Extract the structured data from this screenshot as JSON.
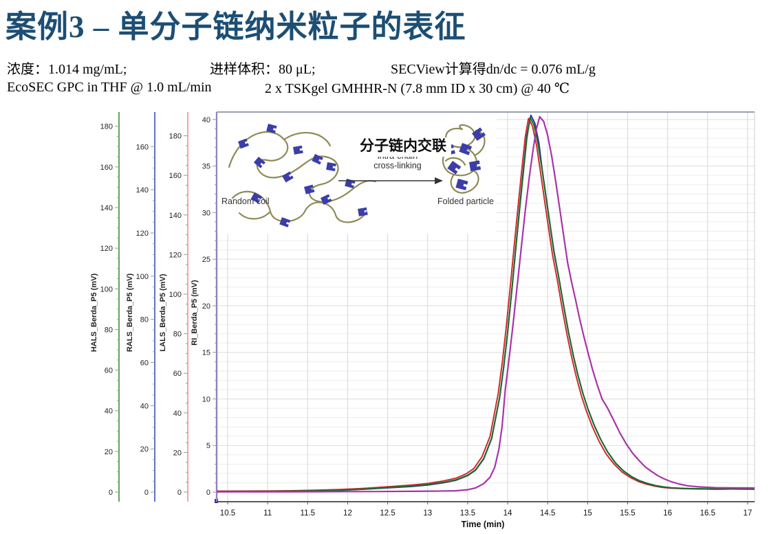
{
  "header": {
    "title": "案例3 – 单分子链纳米粒子的表征",
    "title_color": "#1d4e74",
    "info_line": {
      "concentration": "浓度：1.014 mg/mL;",
      "injection": "进样体积：80 μL;",
      "secview": "SECView计算得dn/dc = 0.076 mL/g"
    },
    "method_line": {
      "system": "EcoSEC GPC in THF @ 1.0 mL/min",
      "column": "2 x TSKgel GMHHR-N (7.8 mm ID x 30 cm) @ 40 ℃"
    }
  },
  "inset": {
    "random_coil_label": "Random coil",
    "folded_particle_label": "Folded particle",
    "cn_label": "分子链内交联",
    "en_label_line1": "intra-chain",
    "en_label_line2": "cross-linking",
    "chain_color": "#8d8a55",
    "block_color": "#3b3ea8",
    "arrow_color": "#333333"
  },
  "chart_data": {
    "type": "line",
    "xlabel": "Time (min)",
    "x_ticks": [
      10.5,
      11,
      11.5,
      12,
      12.5,
      13,
      13.5,
      14,
      14.5,
      15,
      15.5,
      16,
      16.5,
      17
    ],
    "x_range": [
      10.36,
      17.09
    ],
    "grid": {
      "minor_color": "#ededed",
      "major_color": "#dcdcdc",
      "vert_color": "#d7d7d7",
      "top_border": "#77808e",
      "axis_line": "#4f5b69"
    },
    "y_axes": [
      {
        "label": "HALS_Berda_P5 (mV)",
        "color": "#3a8c3a",
        "ticks": [
          0,
          20,
          40,
          60,
          80,
          100,
          120,
          140,
          160,
          180
        ],
        "minor_step": 5,
        "range": [
          0,
          187
        ]
      },
      {
        "label": "RALS_Berda_P5 (mV)",
        "color": "#3a4ac0",
        "ticks": [
          0,
          20,
          40,
          60,
          80,
          100,
          120,
          140,
          160
        ],
        "minor_step": 5,
        "range": [
          0,
          176
        ]
      },
      {
        "label": "LALS_Berda_P5 (mV)",
        "color": "#ef8f8f",
        "ticks": [
          0,
          20,
          40,
          60,
          80,
          100,
          120,
          140,
          160,
          180
        ],
        "minor_step": 5,
        "range": [
          0,
          192
        ]
      },
      {
        "label": "RI_Berda_P5 (mV)",
        "color": "#9181bd",
        "ticks": [
          0,
          5,
          10,
          15,
          20,
          25,
          30,
          35,
          40
        ],
        "minor_step": 1,
        "range": [
          0,
          40.8
        ]
      }
    ],
    "series": [
      {
        "name": "LALS_Berda_P5",
        "color": "#cf2b2b",
        "width": 2,
        "points": [
          [
            10.36,
            0.1
          ],
          [
            10.7,
            0.11
          ],
          [
            11,
            0.12
          ],
          [
            11.3,
            0.15
          ],
          [
            11.6,
            0.2
          ],
          [
            11.9,
            0.27
          ],
          [
            12.2,
            0.4
          ],
          [
            12.5,
            0.57
          ],
          [
            12.8,
            0.75
          ],
          [
            13,
            0.92
          ],
          [
            13.2,
            1.2
          ],
          [
            13.35,
            1.48
          ],
          [
            13.48,
            1.95
          ],
          [
            13.58,
            2.55
          ],
          [
            13.68,
            3.8
          ],
          [
            13.78,
            6.0
          ],
          [
            13.88,
            10.5
          ],
          [
            13.93,
            13.7
          ],
          [
            13.98,
            17.5
          ],
          [
            14.03,
            21.8
          ],
          [
            14.08,
            26.3
          ],
          [
            14.13,
            30.7
          ],
          [
            14.18,
            34.9
          ],
          [
            14.22,
            38.1
          ],
          [
            14.26,
            40.1
          ],
          [
            14.31,
            39.3
          ],
          [
            14.36,
            37.3
          ],
          [
            14.41,
            34.4
          ],
          [
            14.46,
            31.4
          ],
          [
            14.51,
            28.4
          ],
          [
            14.56,
            25.5
          ],
          [
            14.62,
            22.8
          ],
          [
            14.68,
            19.8
          ],
          [
            14.74,
            17.0
          ],
          [
            14.8,
            14.5
          ],
          [
            14.86,
            12.3
          ],
          [
            14.92,
            10.4
          ],
          [
            14.98,
            8.8
          ],
          [
            15.06,
            7.0
          ],
          [
            15.14,
            5.5
          ],
          [
            15.23,
            4.1
          ],
          [
            15.33,
            3.0
          ],
          [
            15.43,
            2.15
          ],
          [
            15.53,
            1.58
          ],
          [
            15.63,
            1.15
          ],
          [
            15.73,
            0.86
          ],
          [
            15.83,
            0.65
          ],
          [
            15.93,
            0.51
          ],
          [
            16.03,
            0.43
          ],
          [
            16.2,
            0.37
          ],
          [
            16.4,
            0.34
          ],
          [
            16.6,
            0.32
          ],
          [
            16.8,
            0.33
          ],
          [
            17.09,
            0.31
          ]
        ]
      },
      {
        "name": "RALS_Berda_P5",
        "color": "#2a2f9e",
        "width": 2,
        "points": [
          [
            10.36,
            0.03
          ],
          [
            10.7,
            0.05
          ],
          [
            11,
            0.06
          ],
          [
            11.3,
            0.08
          ],
          [
            11.6,
            0.12
          ],
          [
            11.9,
            0.18
          ],
          [
            12.2,
            0.3
          ],
          [
            12.5,
            0.45
          ],
          [
            12.8,
            0.6
          ],
          [
            13,
            0.76
          ],
          [
            13.2,
            1.0
          ],
          [
            13.35,
            1.26
          ],
          [
            13.5,
            1.76
          ],
          [
            13.6,
            2.36
          ],
          [
            13.7,
            3.55
          ],
          [
            13.8,
            5.75
          ],
          [
            13.9,
            10.15
          ],
          [
            13.95,
            13.35
          ],
          [
            14,
            17.15
          ],
          [
            14.05,
            21.5
          ],
          [
            14.1,
            26.1
          ],
          [
            14.15,
            30.6
          ],
          [
            14.2,
            34.9
          ],
          [
            14.24,
            38.3
          ],
          [
            14.29,
            40.45
          ],
          [
            14.34,
            39.6
          ],
          [
            14.39,
            37.5
          ],
          [
            14.43,
            34.7
          ],
          [
            14.48,
            31.7
          ],
          [
            14.53,
            28.7
          ],
          [
            14.58,
            25.8
          ],
          [
            14.64,
            23.0
          ],
          [
            14.7,
            20.0
          ],
          [
            14.76,
            17.2
          ],
          [
            14.82,
            14.7
          ],
          [
            14.88,
            12.5
          ],
          [
            14.94,
            10.6
          ],
          [
            15,
            9.0
          ],
          [
            15.08,
            7.2
          ],
          [
            15.16,
            5.7
          ],
          [
            15.25,
            4.3
          ],
          [
            15.35,
            3.1
          ],
          [
            15.45,
            2.25
          ],
          [
            15.55,
            1.65
          ],
          [
            15.65,
            1.2
          ],
          [
            15.75,
            0.9
          ],
          [
            15.85,
            0.68
          ],
          [
            15.95,
            0.53
          ],
          [
            16.05,
            0.44
          ],
          [
            16.2,
            0.38
          ],
          [
            16.4,
            0.34
          ],
          [
            16.6,
            0.32
          ],
          [
            16.8,
            0.33
          ],
          [
            17.09,
            0.31
          ]
        ]
      },
      {
        "name": "HALS_Berda_P5",
        "color": "#1b6b2b",
        "width": 2,
        "points": [
          [
            10.36,
            0.05
          ],
          [
            10.7,
            0.07
          ],
          [
            11,
            0.08
          ],
          [
            11.3,
            0.1
          ],
          [
            11.6,
            0.14
          ],
          [
            11.9,
            0.2
          ],
          [
            12.2,
            0.32
          ],
          [
            12.5,
            0.48
          ],
          [
            12.8,
            0.64
          ],
          [
            13,
            0.8
          ],
          [
            13.2,
            1.05
          ],
          [
            13.35,
            1.3
          ],
          [
            13.5,
            1.8
          ],
          [
            13.6,
            2.4
          ],
          [
            13.7,
            3.6
          ],
          [
            13.8,
            5.8
          ],
          [
            13.9,
            10.2
          ],
          [
            13.95,
            13.4
          ],
          [
            14,
            17.2
          ],
          [
            14.05,
            21.5
          ],
          [
            14.1,
            26.0
          ],
          [
            14.15,
            30.4
          ],
          [
            14.2,
            34.6
          ],
          [
            14.24,
            38.0
          ],
          [
            14.28,
            40.2
          ],
          [
            14.33,
            39.4
          ],
          [
            14.38,
            37.4
          ],
          [
            14.43,
            34.6
          ],
          [
            14.48,
            31.6
          ],
          [
            14.53,
            28.6
          ],
          [
            14.58,
            25.7
          ],
          [
            14.64,
            23.0
          ],
          [
            14.7,
            20.0
          ],
          [
            14.76,
            17.2
          ],
          [
            14.82,
            14.7
          ],
          [
            14.88,
            12.5
          ],
          [
            14.94,
            10.6
          ],
          [
            15,
            9.0
          ],
          [
            15.08,
            7.2
          ],
          [
            15.16,
            5.7
          ],
          [
            15.25,
            4.3
          ],
          [
            15.35,
            3.1
          ],
          [
            15.45,
            2.25
          ],
          [
            15.55,
            1.65
          ],
          [
            15.65,
            1.22
          ],
          [
            15.75,
            0.92
          ],
          [
            15.85,
            0.7
          ],
          [
            15.95,
            0.55
          ],
          [
            16.05,
            0.46
          ],
          [
            16.2,
            0.4
          ],
          [
            16.4,
            0.36
          ],
          [
            16.6,
            0.34
          ],
          [
            16.8,
            0.35
          ],
          [
            17.09,
            0.33
          ]
        ]
      },
      {
        "name": "RI_Berda_P5",
        "color": "#a833a8",
        "width": 2.2,
        "points": [
          [
            10.36,
            0.02
          ],
          [
            10.8,
            0.03
          ],
          [
            11.2,
            0.03
          ],
          [
            11.6,
            0.04
          ],
          [
            12,
            0.05
          ],
          [
            12.4,
            0.06
          ],
          [
            12.8,
            0.08
          ],
          [
            13.1,
            0.1
          ],
          [
            13.35,
            0.14
          ],
          [
            13.5,
            0.25
          ],
          [
            13.6,
            0.45
          ],
          [
            13.7,
            0.9
          ],
          [
            13.78,
            1.6
          ],
          [
            13.84,
            2.7
          ],
          [
            13.89,
            4.6
          ],
          [
            13.93,
            7.0
          ],
          [
            13.97,
            11.0
          ],
          [
            14.02,
            14.5
          ],
          [
            14.07,
            18.2
          ],
          [
            14.12,
            22.2
          ],
          [
            14.17,
            26.2
          ],
          [
            14.22,
            30.2
          ],
          [
            14.27,
            33.8
          ],
          [
            14.32,
            36.9
          ],
          [
            14.36,
            39.0
          ],
          [
            14.4,
            40.3
          ],
          [
            14.45,
            39.8
          ],
          [
            14.5,
            38.3
          ],
          [
            14.55,
            36.1
          ],
          [
            14.6,
            33.4
          ],
          [
            14.65,
            30.5
          ],
          [
            14.7,
            27.5
          ],
          [
            14.75,
            24.6
          ],
          [
            14.8,
            22.5
          ],
          [
            14.85,
            20.6
          ],
          [
            14.9,
            18.6
          ],
          [
            14.95,
            16.8
          ],
          [
            15,
            15.1
          ],
          [
            15.06,
            13.2
          ],
          [
            15.12,
            11.5
          ],
          [
            15.18,
            10.0
          ],
          [
            15.25,
            9.0
          ],
          [
            15.32,
            7.8
          ],
          [
            15.4,
            6.4
          ],
          [
            15.48,
            5.2
          ],
          [
            15.56,
            4.2
          ],
          [
            15.64,
            3.4
          ],
          [
            15.72,
            2.7
          ],
          [
            15.8,
            2.2
          ],
          [
            15.88,
            1.75
          ],
          [
            15.96,
            1.4
          ],
          [
            16.05,
            1.1
          ],
          [
            16.15,
            0.85
          ],
          [
            16.25,
            0.68
          ],
          [
            16.4,
            0.55
          ],
          [
            16.6,
            0.47
          ],
          [
            16.8,
            0.45
          ],
          [
            17.09,
            0.44
          ]
        ]
      }
    ]
  }
}
